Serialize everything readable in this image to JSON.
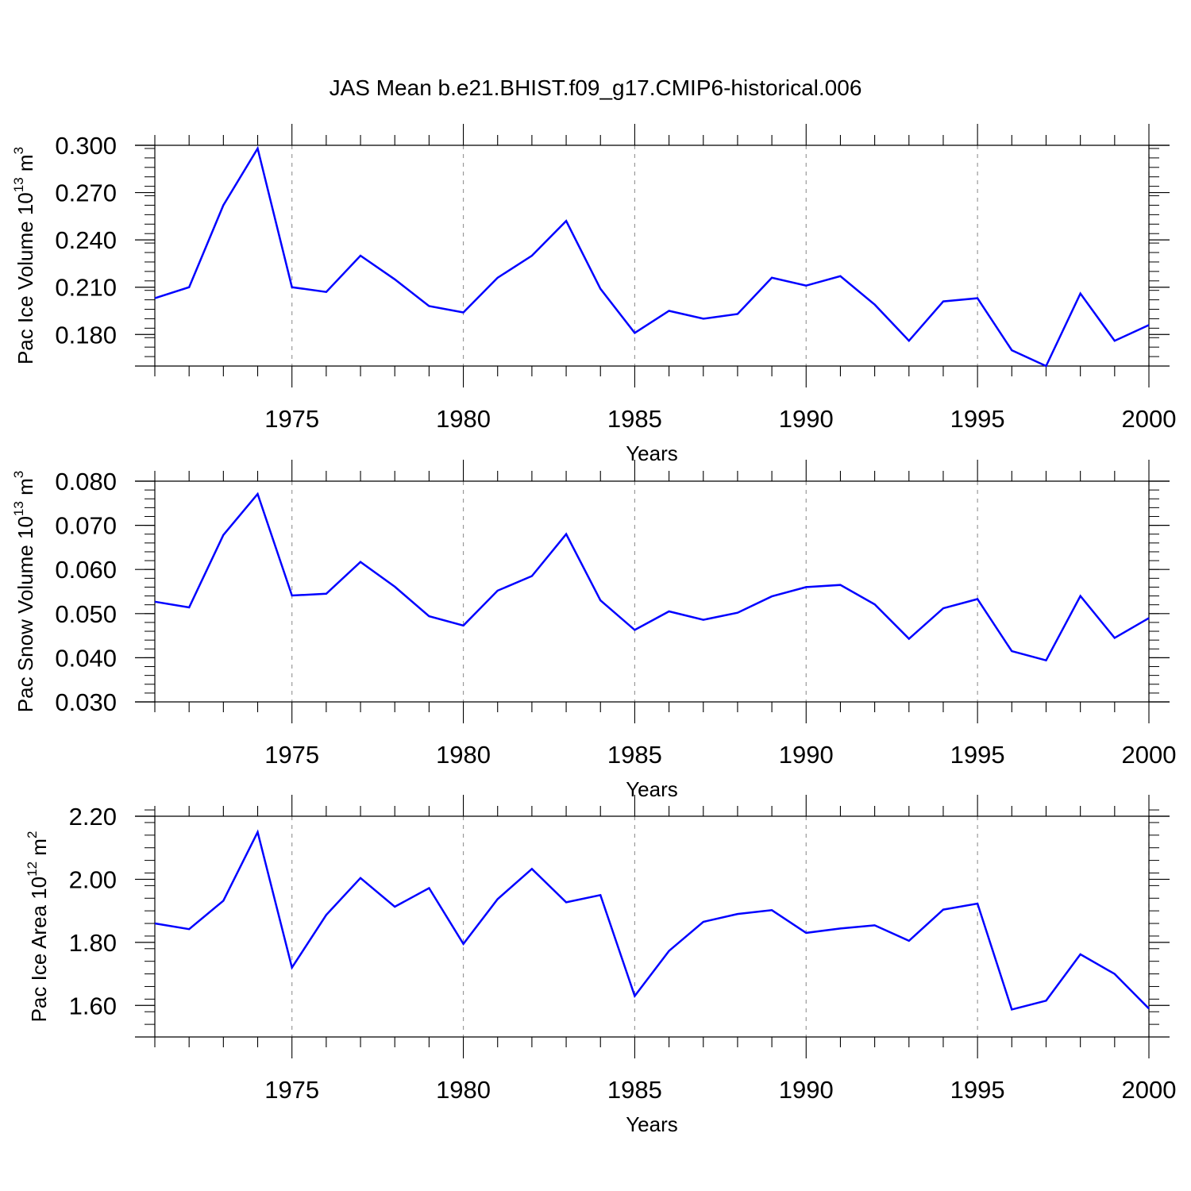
{
  "title": "JAS Mean b.e21.BHIST.f09_g17.CMIP6-historical.006",
  "colors": {
    "line": "#0000ff",
    "grid": "#999999",
    "axis": "#000000"
  },
  "chart_data": [
    {
      "type": "line",
      "name": "ice-volume",
      "ylabel": "Pac Ice Volume 10",
      "ylabel_exp": "13",
      "ylabel_unit": " m",
      "ylabel_unit_exp": "3",
      "xlabel": "Years",
      "xlim": [
        1971,
        2000
      ],
      "ylim": [
        0.16,
        0.3
      ],
      "yticks": [
        0.18,
        0.21,
        0.24,
        0.27,
        0.3
      ],
      "ytick_labels": [
        "0.180",
        "0.210",
        "0.240",
        "0.270",
        "0.300"
      ],
      "yminor": 0.006,
      "xticks": [
        1975,
        1980,
        1985,
        1990,
        1995,
        2000
      ],
      "xtick_labels": [
        "1975",
        "1980",
        "1985",
        "1990",
        "1995",
        "2000"
      ],
      "x": [
        1971,
        1972,
        1973,
        1974,
        1975,
        1976,
        1977,
        1978,
        1979,
        1980,
        1981,
        1982,
        1983,
        1984,
        1985,
        1986,
        1987,
        1988,
        1989,
        1990,
        1991,
        1992,
        1993,
        1994,
        1995,
        1996,
        1997,
        1998,
        1999,
        2000
      ],
      "values": [
        0.203,
        0.21,
        0.262,
        0.298,
        0.21,
        0.207,
        0.23,
        0.215,
        0.198,
        0.194,
        0.216,
        0.23,
        0.252,
        0.209,
        0.181,
        0.195,
        0.19,
        0.193,
        0.216,
        0.211,
        0.217,
        0.199,
        0.176,
        0.201,
        0.203,
        0.17,
        0.16,
        0.206,
        0.176,
        0.186
      ]
    },
    {
      "type": "line",
      "name": "snow-volume",
      "ylabel": "Pac Snow Volume 10",
      "ylabel_exp": "13",
      "ylabel_unit": " m",
      "ylabel_unit_exp": "3",
      "xlabel": "Years",
      "xlim": [
        1971,
        2000
      ],
      "ylim": [
        0.03,
        0.08
      ],
      "yticks": [
        0.03,
        0.04,
        0.05,
        0.06,
        0.07,
        0.08
      ],
      "ytick_labels": [
        "0.030",
        "0.040",
        "0.050",
        "0.060",
        "0.070",
        "0.080"
      ],
      "yminor": 0.002,
      "xticks": [
        1975,
        1980,
        1985,
        1990,
        1995,
        2000
      ],
      "xtick_labels": [
        "1975",
        "1980",
        "1985",
        "1990",
        "1995",
        "2000"
      ],
      "x": [
        1971,
        1972,
        1973,
        1974,
        1975,
        1976,
        1977,
        1978,
        1979,
        1980,
        1981,
        1982,
        1983,
        1984,
        1985,
        1986,
        1987,
        1988,
        1989,
        1990,
        1991,
        1992,
        1993,
        1994,
        1995,
        1996,
        1997,
        1998,
        1999,
        2000
      ],
      "values": [
        0.0527,
        0.0514,
        0.0678,
        0.0771,
        0.0541,
        0.0545,
        0.0617,
        0.0561,
        0.0494,
        0.0473,
        0.0552,
        0.0585,
        0.068,
        0.053,
        0.0463,
        0.0505,
        0.0486,
        0.0502,
        0.0539,
        0.056,
        0.0565,
        0.0521,
        0.0443,
        0.0512,
        0.0533,
        0.0415,
        0.0394,
        0.054,
        0.0445,
        0.049
      ]
    },
    {
      "type": "line",
      "name": "ice-area",
      "ylabel": "Pac Ice Area 10",
      "ylabel_exp": "12",
      "ylabel_unit": " m",
      "ylabel_unit_exp": "2",
      "xlabel": "Years",
      "xlim": [
        1971,
        2000
      ],
      "ylim": [
        1.5,
        2.2
      ],
      "yticks": [
        1.6,
        1.8,
        2.0,
        2.2
      ],
      "ytick_labels": [
        "1.60",
        "1.80",
        "2.00",
        "2.20"
      ],
      "yminor": 0.04,
      "xticks": [
        1975,
        1980,
        1985,
        1990,
        1995,
        2000
      ],
      "xtick_labels": [
        "1975",
        "1980",
        "1985",
        "1990",
        "1995",
        "2000"
      ],
      "x": [
        1971,
        1972,
        1973,
        1974,
        1975,
        1976,
        1977,
        1978,
        1979,
        1980,
        1981,
        1982,
        1983,
        1984,
        1985,
        1986,
        1987,
        1988,
        1989,
        1990,
        1991,
        1992,
        1993,
        1994,
        1995,
        1996,
        1997,
        1998,
        1999,
        2000
      ],
      "values": [
        1.86,
        1.842,
        1.932,
        2.15,
        1.72,
        1.887,
        2.004,
        1.913,
        1.972,
        1.795,
        1.937,
        2.033,
        1.927,
        1.95,
        1.63,
        1.773,
        1.865,
        1.89,
        1.902,
        1.83,
        1.844,
        1.854,
        1.805,
        1.904,
        1.923,
        1.587,
        1.615,
        1.762,
        1.7,
        1.59
      ]
    }
  ]
}
